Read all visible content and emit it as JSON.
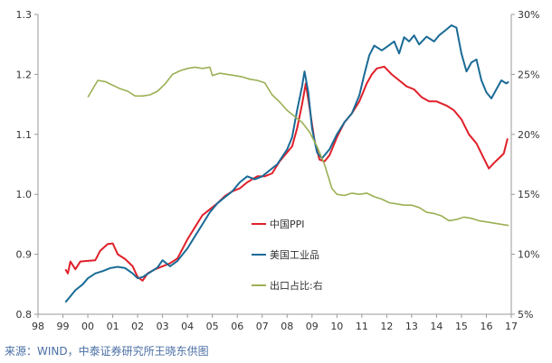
{
  "chart_data": {
    "type": "line",
    "title": "",
    "xlabel": "",
    "ylabel": "",
    "x_ticks": [
      "98",
      "99",
      "00",
      "01",
      "02",
      "03",
      "04",
      "05",
      "06",
      "07",
      "08",
      "09",
      "10",
      "11",
      "12",
      "13",
      "14",
      "15",
      "16",
      "17"
    ],
    "x_range": [
      1998,
      2017
    ],
    "y_left_ticks": [
      "0.8",
      "0.9",
      "1.0",
      "1.1",
      "1.2",
      "1.3"
    ],
    "y_left_range": [
      0.8,
      1.3
    ],
    "y_right_ticks": [
      "5%",
      "10%",
      "15%",
      "20%",
      "25%",
      "30%"
    ],
    "y_right_range": [
      5,
      30
    ],
    "legend_position": "center",
    "grid": false,
    "series": [
      {
        "name": "中国PPI",
        "axis": "left",
        "color": "#e0202a",
        "points": [
          [
            1999.1,
            0.875
          ],
          [
            1999.2,
            0.868
          ],
          [
            1999.3,
            0.888
          ],
          [
            1999.5,
            0.875
          ],
          [
            1999.7,
            0.888
          ],
          [
            2000.0,
            0.889
          ],
          [
            2000.3,
            0.89
          ],
          [
            2000.5,
            0.906
          ],
          [
            2000.8,
            0.917
          ],
          [
            2001.0,
            0.918
          ],
          [
            2001.2,
            0.9
          ],
          [
            2001.5,
            0.892
          ],
          [
            2001.8,
            0.88
          ],
          [
            2002.0,
            0.862
          ],
          [
            2002.2,
            0.856
          ],
          [
            2002.4,
            0.868
          ],
          [
            2002.7,
            0.875
          ],
          [
            2003.0,
            0.88
          ],
          [
            2003.3,
            0.885
          ],
          [
            2003.6,
            0.893
          ],
          [
            2004.0,
            0.925
          ],
          [
            2004.3,
            0.945
          ],
          [
            2004.6,
            0.965
          ],
          [
            2004.9,
            0.975
          ],
          [
            2005.2,
            0.985
          ],
          [
            2005.5,
            0.997
          ],
          [
            2005.8,
            1.005
          ],
          [
            2006.1,
            1.01
          ],
          [
            2006.4,
            1.02
          ],
          [
            2006.8,
            1.03
          ],
          [
            2007.1,
            1.03
          ],
          [
            2007.4,
            1.035
          ],
          [
            2007.7,
            1.055
          ],
          [
            2008.0,
            1.07
          ],
          [
            2008.2,
            1.08
          ],
          [
            2008.4,
            1.11
          ],
          [
            2008.6,
            1.15
          ],
          [
            2008.75,
            1.185
          ],
          [
            2008.9,
            1.145
          ],
          [
            2009.1,
            1.09
          ],
          [
            2009.3,
            1.058
          ],
          [
            2009.5,
            1.055
          ],
          [
            2009.7,
            1.065
          ],
          [
            2010.0,
            1.095
          ],
          [
            2010.3,
            1.12
          ],
          [
            2010.6,
            1.135
          ],
          [
            2010.9,
            1.155
          ],
          [
            2011.2,
            1.185
          ],
          [
            2011.4,
            1.2
          ],
          [
            2011.6,
            1.21
          ],
          [
            2011.9,
            1.213
          ],
          [
            2012.2,
            1.2
          ],
          [
            2012.5,
            1.19
          ],
          [
            2012.8,
            1.18
          ],
          [
            2013.1,
            1.175
          ],
          [
            2013.4,
            1.162
          ],
          [
            2013.7,
            1.155
          ],
          [
            2014.0,
            1.155
          ],
          [
            2014.4,
            1.148
          ],
          [
            2014.7,
            1.14
          ],
          [
            2015.0,
            1.125
          ],
          [
            2015.3,
            1.1
          ],
          [
            2015.6,
            1.085
          ],
          [
            2015.9,
            1.06
          ],
          [
            2016.1,
            1.043
          ],
          [
            2016.3,
            1.052
          ],
          [
            2016.5,
            1.06
          ],
          [
            2016.7,
            1.068
          ],
          [
            2016.85,
            1.093
          ]
        ]
      },
      {
        "name": "美国工业品",
        "axis": "left",
        "color": "#1a6b96",
        "points": [
          [
            1999.1,
            0.82
          ],
          [
            1999.3,
            0.83
          ],
          [
            1999.5,
            0.84
          ],
          [
            1999.8,
            0.85
          ],
          [
            2000.0,
            0.86
          ],
          [
            2000.3,
            0.868
          ],
          [
            2000.6,
            0.872
          ],
          [
            2000.9,
            0.877
          ],
          [
            2001.2,
            0.879
          ],
          [
            2001.5,
            0.877
          ],
          [
            2001.8,
            0.868
          ],
          [
            2002.0,
            0.86
          ],
          [
            2002.2,
            0.862
          ],
          [
            2002.5,
            0.87
          ],
          [
            2002.8,
            0.878
          ],
          [
            2003.0,
            0.89
          ],
          [
            2003.3,
            0.88
          ],
          [
            2003.6,
            0.889
          ],
          [
            2004.0,
            0.91
          ],
          [
            2004.3,
            0.93
          ],
          [
            2004.6,
            0.95
          ],
          [
            2004.9,
            0.97
          ],
          [
            2005.2,
            0.985
          ],
          [
            2005.5,
            0.995
          ],
          [
            2005.8,
            1.005
          ],
          [
            2006.1,
            1.02
          ],
          [
            2006.4,
            1.03
          ],
          [
            2006.7,
            1.025
          ],
          [
            2007.0,
            1.03
          ],
          [
            2007.3,
            1.04
          ],
          [
            2007.6,
            1.05
          ],
          [
            2008.0,
            1.075
          ],
          [
            2008.2,
            1.095
          ],
          [
            2008.4,
            1.14
          ],
          [
            2008.6,
            1.18
          ],
          [
            2008.7,
            1.205
          ],
          [
            2008.85,
            1.17
          ],
          [
            2009.0,
            1.11
          ],
          [
            2009.2,
            1.07
          ],
          [
            2009.4,
            1.06
          ],
          [
            2009.7,
            1.075
          ],
          [
            2010.0,
            1.1
          ],
          [
            2010.3,
            1.12
          ],
          [
            2010.6,
            1.135
          ],
          [
            2010.9,
            1.165
          ],
          [
            2011.1,
            1.2
          ],
          [
            2011.3,
            1.232
          ],
          [
            2011.5,
            1.248
          ],
          [
            2011.8,
            1.24
          ],
          [
            2012.0,
            1.246
          ],
          [
            2012.3,
            1.255
          ],
          [
            2012.5,
            1.235
          ],
          [
            2012.7,
            1.262
          ],
          [
            2012.9,
            1.255
          ],
          [
            2013.1,
            1.265
          ],
          [
            2013.3,
            1.25
          ],
          [
            2013.6,
            1.263
          ],
          [
            2013.9,
            1.255
          ],
          [
            2014.1,
            1.265
          ],
          [
            2014.4,
            1.275
          ],
          [
            2014.6,
            1.282
          ],
          [
            2014.8,
            1.278
          ],
          [
            2015.0,
            1.235
          ],
          [
            2015.2,
            1.205
          ],
          [
            2015.4,
            1.22
          ],
          [
            2015.6,
            1.225
          ],
          [
            2015.8,
            1.19
          ],
          [
            2016.0,
            1.17
          ],
          [
            2016.2,
            1.16
          ],
          [
            2016.4,
            1.175
          ],
          [
            2016.6,
            1.19
          ],
          [
            2016.8,
            1.185
          ],
          [
            2016.9,
            1.188
          ]
        ]
      },
      {
        "name": "出口占比:右",
        "axis": "right",
        "color": "#9bb054",
        "points": [
          [
            2000.0,
            23.1
          ],
          [
            2000.2,
            23.8
          ],
          [
            2000.4,
            24.5
          ],
          [
            2000.7,
            24.4
          ],
          [
            2001.0,
            24.1
          ],
          [
            2001.3,
            23.8
          ],
          [
            2001.6,
            23.6
          ],
          [
            2001.9,
            23.2
          ],
          [
            2002.2,
            23.2
          ],
          [
            2002.5,
            23.3
          ],
          [
            2002.8,
            23.6
          ],
          [
            2003.1,
            24.2
          ],
          [
            2003.4,
            25.0
          ],
          [
            2003.7,
            25.3
          ],
          [
            2004.0,
            25.5
          ],
          [
            2004.3,
            25.6
          ],
          [
            2004.6,
            25.5
          ],
          [
            2004.9,
            25.6
          ],
          [
            2005.0,
            24.9
          ],
          [
            2005.3,
            25.1
          ],
          [
            2005.6,
            25.0
          ],
          [
            2005.9,
            24.9
          ],
          [
            2006.2,
            24.8
          ],
          [
            2006.5,
            24.6
          ],
          [
            2006.8,
            24.5
          ],
          [
            2007.1,
            24.3
          ],
          [
            2007.4,
            23.3
          ],
          [
            2007.7,
            22.7
          ],
          [
            2008.0,
            22.0
          ],
          [
            2008.3,
            21.5
          ],
          [
            2008.6,
            21.0
          ],
          [
            2008.9,
            20.2
          ],
          [
            2009.2,
            19.0
          ],
          [
            2009.5,
            17.5
          ],
          [
            2009.8,
            15.5
          ],
          [
            2010.0,
            15.0
          ],
          [
            2010.3,
            14.9
          ],
          [
            2010.6,
            15.1
          ],
          [
            2010.9,
            15.0
          ],
          [
            2011.2,
            15.1
          ],
          [
            2011.5,
            14.8
          ],
          [
            2011.8,
            14.6
          ],
          [
            2012.1,
            14.3
          ],
          [
            2012.4,
            14.2
          ],
          [
            2012.7,
            14.1
          ],
          [
            2013.0,
            14.1
          ],
          [
            2013.3,
            13.9
          ],
          [
            2013.6,
            13.5
          ],
          [
            2013.9,
            13.4
          ],
          [
            2014.2,
            13.2
          ],
          [
            2014.5,
            12.8
          ],
          [
            2014.8,
            12.9
          ],
          [
            2015.1,
            13.1
          ],
          [
            2015.4,
            13.0
          ],
          [
            2015.7,
            12.8
          ],
          [
            2016.0,
            12.7
          ],
          [
            2016.3,
            12.6
          ],
          [
            2016.6,
            12.5
          ],
          [
            2016.9,
            12.4
          ]
        ]
      }
    ]
  },
  "source_text": "来源：WIND，中泰证券研究所王晓东供图"
}
